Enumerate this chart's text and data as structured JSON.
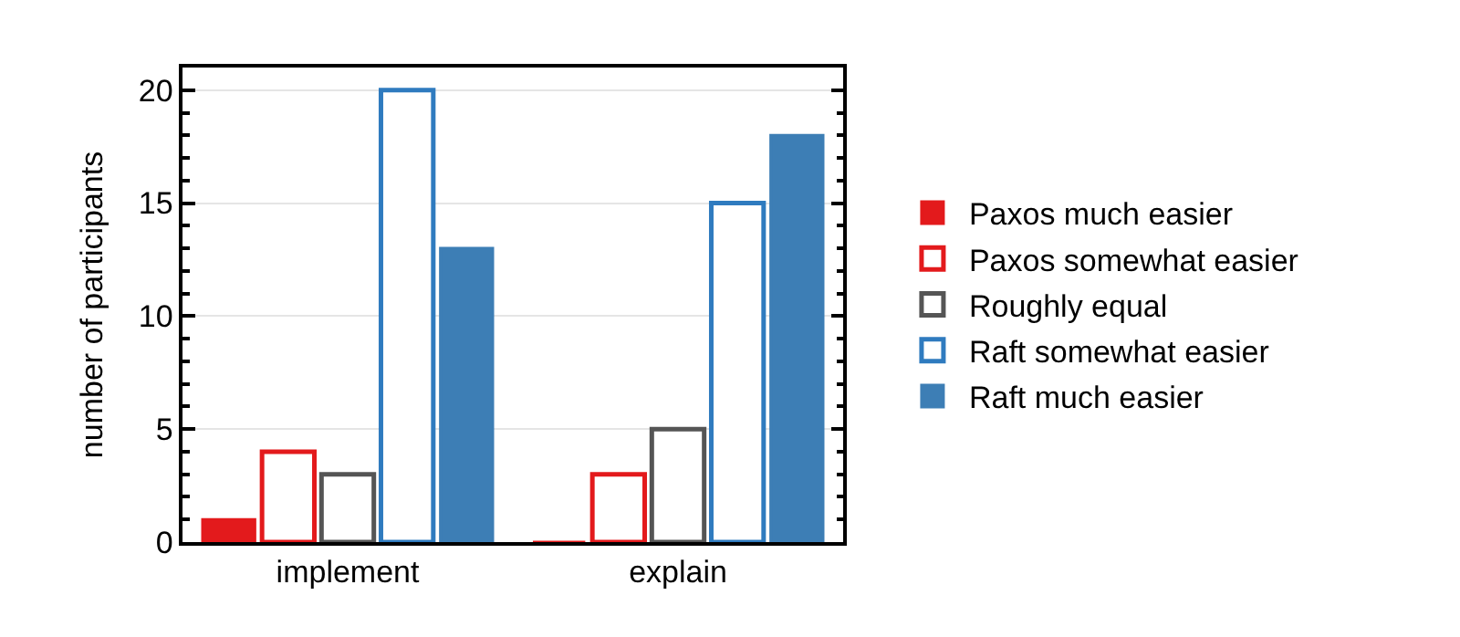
{
  "chart_data": {
    "type": "bar",
    "ylabel": "number of participants",
    "categories": [
      "implement",
      "explain"
    ],
    "series": [
      {
        "name": "Paxos much easier",
        "color": "#e31a1c",
        "values": [
          1,
          0
        ]
      },
      {
        "name": "Paxos somewhat easier",
        "color": "#e31a1c",
        "values": [
          4,
          3
        ]
      },
      {
        "name": "Roughly equal",
        "color": "#555555",
        "values": [
          3,
          5
        ]
      },
      {
        "name": "Raft somewhat easier",
        "color": "#2f7bbf",
        "values": [
          20,
          15
        ]
      },
      {
        "name": "Raft much easier",
        "color": "#3d7eb5",
        "values": [
          13,
          18
        ]
      }
    ],
    "ylim": [
      0,
      21
    ],
    "yticks": [
      0,
      5,
      10,
      15,
      20
    ],
    "grid": "y",
    "legend": "right"
  }
}
